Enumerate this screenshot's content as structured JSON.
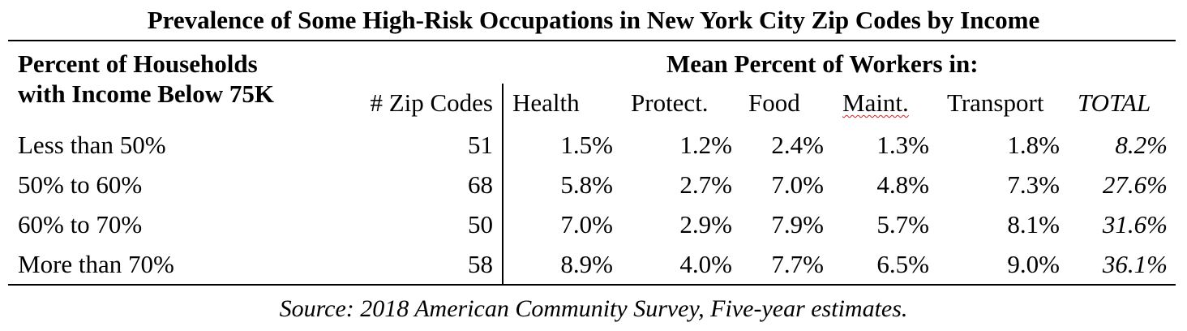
{
  "chart_data": {
    "type": "table",
    "title": "Prevalence of Some High-Risk Occupations in New York City Zip Codes by Income",
    "row_header": [
      "Percent of Households",
      "with Income Below 75K"
    ],
    "group_header": "Mean Percent of Workers in:",
    "columns": [
      "# Zip Codes",
      "Health",
      "Protect.",
      "Food",
      "Maint.",
      "Transport",
      "TOTAL"
    ],
    "rows": [
      {
        "label": "Less than 50%",
        "values": [
          "51",
          "1.5%",
          "1.2%",
          "2.4%",
          "1.3%",
          "1.8%",
          "8.2%"
        ]
      },
      {
        "label": "50% to 60%",
        "values": [
          "68",
          "5.8%",
          "2.7%",
          "7.0%",
          "4.8%",
          "7.3%",
          "27.6%"
        ]
      },
      {
        "label": "60% to 70%",
        "values": [
          "50",
          "7.0%",
          "2.9%",
          "7.9%",
          "5.7%",
          "8.1%",
          "31.6%"
        ]
      },
      {
        "label": "More than 70%",
        "values": [
          "58",
          "8.9%",
          "4.0%",
          "7.7%",
          "6.5%",
          "9.0%",
          "36.1%"
        ]
      }
    ],
    "source": "Source: 2018 American Community Survey, Five-year estimates."
  }
}
